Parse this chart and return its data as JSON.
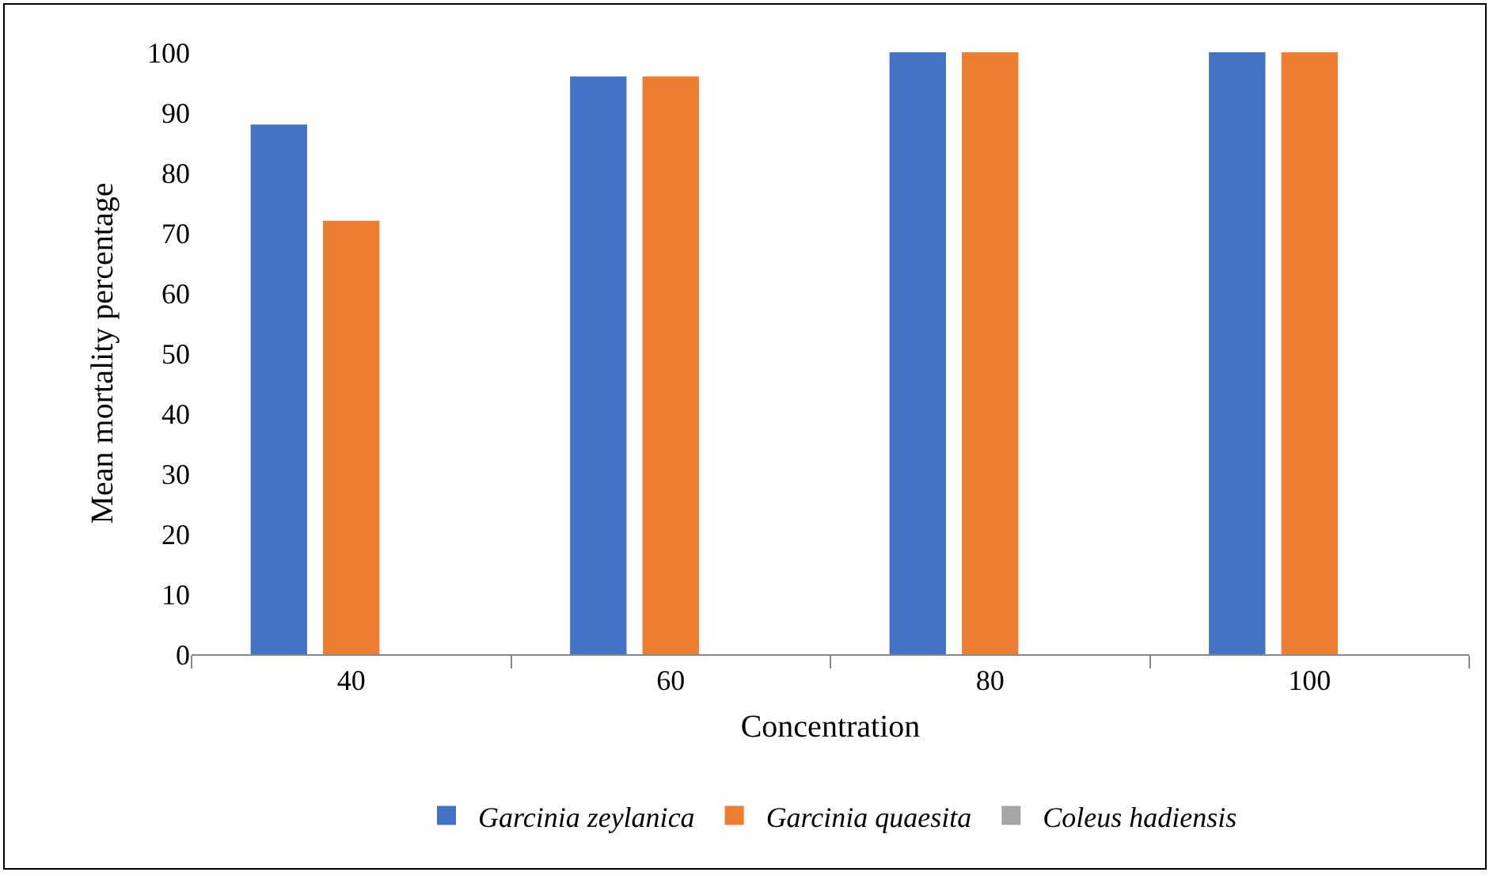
{
  "chart_data": {
    "type": "bar",
    "xlabel": "Concentration",
    "ylabel": "Mean mortality percentage",
    "categories": [
      "40",
      "60",
      "80",
      "100"
    ],
    "series": [
      {
        "name": "Garcinia zeylanica",
        "color": "#4472c4",
        "values": [
          88,
          96,
          100,
          100
        ]
      },
      {
        "name": "Garcinia quaesita",
        "color": "#ed7d31",
        "values": [
          72,
          96,
          100,
          100
        ]
      },
      {
        "name": "Coleus hadiensis",
        "color": "#a5a5a5",
        "values": [
          0,
          0,
          0,
          0
        ]
      }
    ],
    "ylim": [
      0,
      100
    ],
    "yticks": [
      0,
      10,
      20,
      30,
      40,
      50,
      60,
      70,
      80,
      90,
      100
    ],
    "grid": false,
    "legend": "bottom"
  }
}
